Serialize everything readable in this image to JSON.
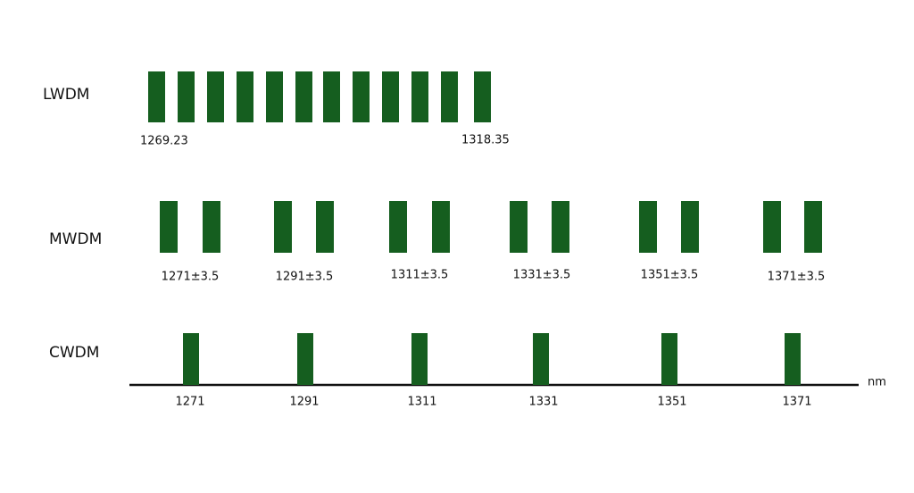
{
  "rows": [
    {
      "label": "LWDM",
      "channel_labels": [
        "1269.23",
        "1318.35"
      ]
    },
    {
      "label": "MWDM",
      "channel_labels": [
        "1271±3.5",
        "1291±3.5",
        "1311±3.5",
        "1331±3.5",
        "1351±3.5",
        "1371±3.5"
      ]
    },
    {
      "label": "CWDM",
      "channel_labels": [
        "1271",
        "1291",
        "1311",
        "1331",
        "1351",
        "1371"
      ]
    }
  ],
  "axis_unit": "nm"
}
